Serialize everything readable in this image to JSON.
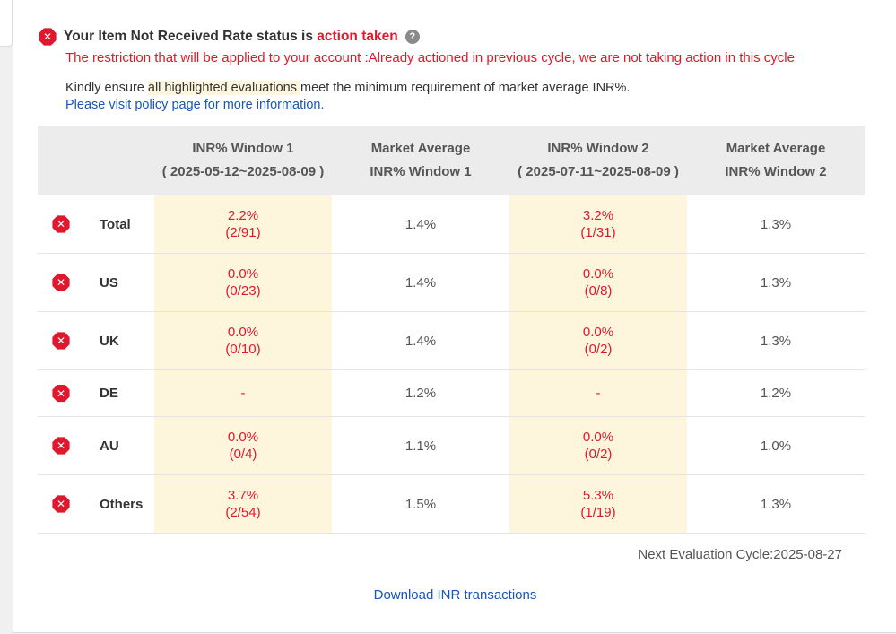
{
  "status": {
    "prefix": "Your Item Not Received Rate status is ",
    "state": "action taken",
    "help_icon": "question-circle-icon",
    "restriction": "The restriction that will be applied to your account :Already actioned in previous cycle, we are not taking action in this cycle"
  },
  "notice": {
    "text_before": "Kindly ensure ",
    "highlight": "all highlighted evaluations ",
    "text_after": "meet the minimum requirement of market average INR%.",
    "policy_link": "Please visit policy page for more information."
  },
  "table": {
    "headers": {
      "window1": "INR% Window 1",
      "window1_range": "( 2025-05-12~2025-08-09 )",
      "market1_line1": "Market Average",
      "market1_line2": "INR% Window 1",
      "window2": "INR% Window 2",
      "window2_range": "( 2025-07-11~2025-08-09 )",
      "market2_line1": "Market Average",
      "market2_line2": "INR% Window 2"
    },
    "rows": [
      {
        "region": "Total",
        "w1_rate": "2.2%",
        "w1_count": "(2/91)",
        "m1": "1.4%",
        "w2_rate": "3.2%",
        "w2_count": "(1/31)",
        "m2": "1.3%"
      },
      {
        "region": "US",
        "w1_rate": "0.0%",
        "w1_count": "(0/23)",
        "m1": "1.4%",
        "w2_rate": "0.0%",
        "w2_count": "(0/8)",
        "m2": "1.3%"
      },
      {
        "region": "UK",
        "w1_rate": "0.0%",
        "w1_count": "(0/10)",
        "m1": "1.4%",
        "w2_rate": "0.0%",
        "w2_count": "(0/2)",
        "m2": "1.3%"
      },
      {
        "region": "DE",
        "w1_rate": "-",
        "w1_count": "",
        "m1": "1.2%",
        "w2_rate": "-",
        "w2_count": "",
        "m2": "1.2%"
      },
      {
        "region": "AU",
        "w1_rate": "0.0%",
        "w1_count": "(0/4)",
        "m1": "1.1%",
        "w2_rate": "0.0%",
        "w2_count": "(0/2)",
        "m2": "1.0%"
      },
      {
        "region": "Others",
        "w1_rate": "3.7%",
        "w1_count": "(2/54)",
        "m1": "1.5%",
        "w2_rate": "5.3%",
        "w2_count": "(1/19)",
        "m2": "1.3%"
      }
    ]
  },
  "next_cycle": "Next Evaluation Cycle:2025-08-27",
  "download_link": "Download INR transactions",
  "colors": {
    "alert_red": "#e0182e",
    "highlight": "#fdf6dc",
    "link_blue": "#1457b8"
  }
}
